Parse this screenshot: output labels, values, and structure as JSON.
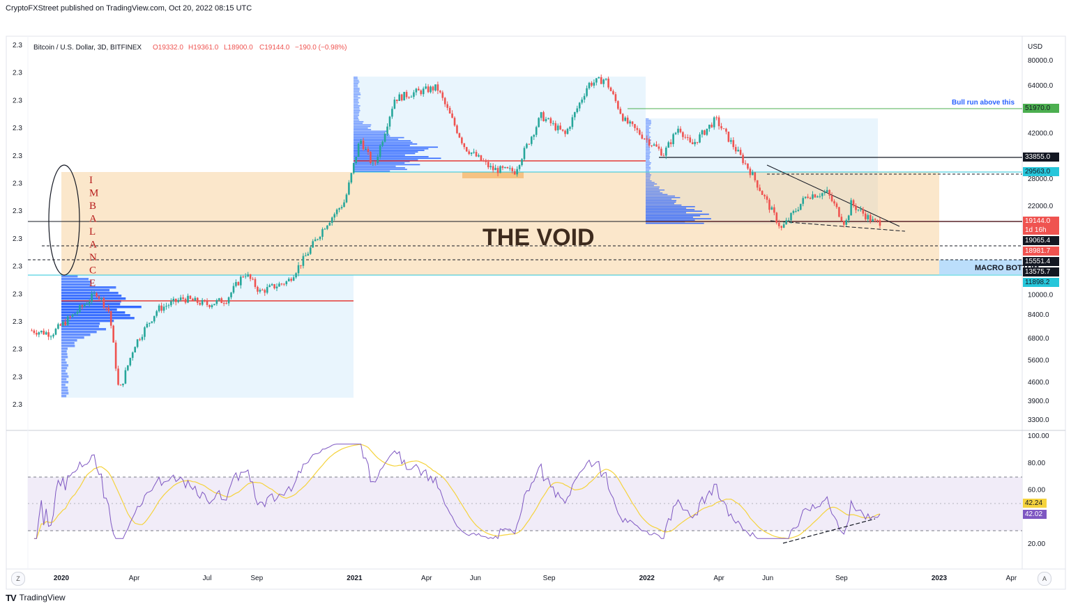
{
  "header": {
    "publish_line": "CryptoFXStreet published on TradingView.com, Oct 20, 2022 08:15 UTC"
  },
  "legend": {
    "symbol": "Bitcoin / U.S. Dollar, 3D, BITFINEX",
    "open": "O19332.0",
    "high": "H19361.0",
    "low": "L18900.0",
    "close": "C19144.0",
    "change": "−190.0 (−0.98%)"
  },
  "colors": {
    "up": "#26a69a",
    "down": "#ef5350",
    "void_fill": "#f7c98b",
    "value_area": "#dbeefb",
    "profile_blue": "#2962ff",
    "rsi_line": "#7e57c2",
    "rsi_ma": "#f5d33d",
    "rsi_band": "#ede7f6",
    "green_line": "#4caf50",
    "teal_line": "#26c6da",
    "red_level": "#e53935"
  },
  "price_axis": {
    "currency": "USD",
    "ticks": [
      "80000.0",
      "64000.0",
      "42000.0",
      "28000.0",
      "22000.0",
      "10000.0",
      "8400.0",
      "6800.0",
      "5600.0",
      "4600.0",
      "3900.0",
      "3300.0"
    ]
  },
  "left_axis": {
    "ticks": [
      "2.3",
      "2.3",
      "2.3",
      "2.3",
      "2.3",
      "2.3",
      "2.3",
      "2.3",
      "2.3",
      "2.3",
      "2.3",
      "2.3",
      "2.3",
      "2.3"
    ]
  },
  "price_labels": [
    {
      "value": "51970.0",
      "bg": "#4caf50",
      "fg": "#131722"
    },
    {
      "value": "33855.0",
      "bg": "#131722",
      "fg": "#ffffff"
    },
    {
      "value": "29563.0",
      "bg": "#26c6da",
      "fg": "#131722"
    },
    {
      "value": "19144.0",
      "bg": "#ef5350",
      "fg": "#ffffff"
    },
    {
      "value": "1d 16h",
      "bg": "#ef5350",
      "fg": "#ffffff"
    },
    {
      "value": "19065.4",
      "bg": "#131722",
      "fg": "#ffffff"
    },
    {
      "value": "18981.7",
      "bg": "#ef5350",
      "fg": "#ffffff"
    },
    {
      "value": "15551.4",
      "bg": "#131722",
      "fg": "#ffffff"
    },
    {
      "value": "13575.7",
      "bg": "#131722",
      "fg": "#ffffff"
    },
    {
      "value": "11898.2",
      "bg": "#26c6da",
      "fg": "#131722"
    }
  ],
  "rsi_axis": {
    "ticks": [
      "100.00",
      "80.00",
      "60.00",
      "20.00"
    ],
    "labels": [
      {
        "value": "42.24",
        "bg": "#f5d33d",
        "fg": "#131722"
      },
      {
        "value": "42.02",
        "bg": "#7e57c2",
        "fg": "#ffffff"
      }
    ]
  },
  "time_axis": {
    "ticks": [
      {
        "label": "2020",
        "bold": true
      },
      {
        "label": "Apr",
        "bold": false
      },
      {
        "label": "Jul",
        "bold": false
      },
      {
        "label": "Sep",
        "bold": false
      },
      {
        "label": "2021",
        "bold": true
      },
      {
        "label": "Apr",
        "bold": false
      },
      {
        "label": "Jun",
        "bold": false
      },
      {
        "label": "Sep",
        "bold": false
      },
      {
        "label": "2022",
        "bold": true
      },
      {
        "label": "Apr",
        "bold": false
      },
      {
        "label": "Jun",
        "bold": false
      },
      {
        "label": "Sep",
        "bold": false
      },
      {
        "label": "2023",
        "bold": true
      },
      {
        "label": "Apr",
        "bold": false
      }
    ],
    "zoom_button": "Z",
    "auto_button": "A"
  },
  "annotations": {
    "void": "THE VOID",
    "imbalance": [
      "I",
      "M",
      "B",
      "A",
      "L",
      "A",
      "N",
      "C",
      "E"
    ],
    "bull_run": "Bull run above this",
    "macro_bottom": "MACRO BOTTOM"
  },
  "brand": {
    "logo": "TV",
    "name": "TradingView"
  },
  "chart_data": {
    "type": "candlestick",
    "title": "Bitcoin / U.S. Dollar, 3D, BITFINEX",
    "ylabel": "USD",
    "y_scale": "log",
    "ylim": [
      3000,
      90000
    ],
    "x_range": [
      "2019-11-15",
      "2023-05-20"
    ],
    "levels": [
      {
        "price": 51970,
        "label": "Bull run above this",
        "color": "#4caf50"
      },
      {
        "price": 33855,
        "color": "#131722"
      },
      {
        "price": 29563,
        "color": "#26c6da"
      },
      {
        "price": 19144,
        "color": "#ef5350"
      },
      {
        "price": 19065.4,
        "style": "dashed"
      },
      {
        "price": 15551.4,
        "style": "dashed"
      },
      {
        "price": 13575.7,
        "color": "#131722"
      },
      {
        "price": 11898.2,
        "color": "#26c6da"
      }
    ],
    "zones": [
      {
        "name": "THE VOID",
        "from_price": 11898.2,
        "to_price": 29563,
        "x_start": "2020-01-01",
        "x_end": "2023-01-01"
      },
      {
        "name": "MACRO BOTTOM",
        "from_price": 11898.2,
        "to_price": 13575.7,
        "x_start": "2023-01-01"
      }
    ],
    "price_path": [
      [
        "2019-11-25",
        7300
      ],
      [
        "2019-12-20",
        7100
      ],
      [
        "2020-01-20",
        8600
      ],
      [
        "2020-02-14",
        10200
      ],
      [
        "2020-03-01",
        8600
      ],
      [
        "2020-03-13",
        4200
      ],
      [
        "2020-04-01",
        6400
      ],
      [
        "2020-04-30",
        8800
      ],
      [
        "2020-06-01",
        9700
      ],
      [
        "2020-07-01",
        9200
      ],
      [
        "2020-07-25",
        9600
      ],
      [
        "2020-08-17",
        12200
      ],
      [
        "2020-09-05",
        10300
      ],
      [
        "2020-10-10",
        11300
      ],
      [
        "2020-10-30",
        13800
      ],
      [
        "2020-11-25",
        18500
      ],
      [
        "2020-12-20",
        23000
      ],
      [
        "2021-01-08",
        40000
      ],
      [
        "2021-01-25",
        31000
      ],
      [
        "2021-02-20",
        57000
      ],
      [
        "2021-03-15",
        60000
      ],
      [
        "2021-04-14",
        63000
      ],
      [
        "2021-05-19",
        37000
      ],
      [
        "2021-06-22",
        30500
      ],
      [
        "2021-07-20",
        30000
      ],
      [
        "2021-08-22",
        49000
      ],
      [
        "2021-09-21",
        41500
      ],
      [
        "2021-10-20",
        65000
      ],
      [
        "2021-11-10",
        68000
      ],
      [
        "2021-12-04",
        47000
      ],
      [
        "2022-01-22",
        35000
      ],
      [
        "2022-02-10",
        44500
      ],
      [
        "2022-02-25",
        37500
      ],
      [
        "2022-03-28",
        47500
      ],
      [
        "2022-05-10",
        30000
      ],
      [
        "2022-06-18",
        18000
      ],
      [
        "2022-07-20",
        24200
      ],
      [
        "2022-08-14",
        24800
      ],
      [
        "2022-09-06",
        18700
      ],
      [
        "2022-09-13",
        22500
      ],
      [
        "2022-10-12",
        19000
      ],
      [
        "2022-10-20",
        19144
      ]
    ],
    "rsi": {
      "name": "RSI",
      "last": 42.02,
      "ma_last": 42.24,
      "band": [
        30,
        70
      ],
      "ylim": [
        15,
        100
      ]
    }
  }
}
